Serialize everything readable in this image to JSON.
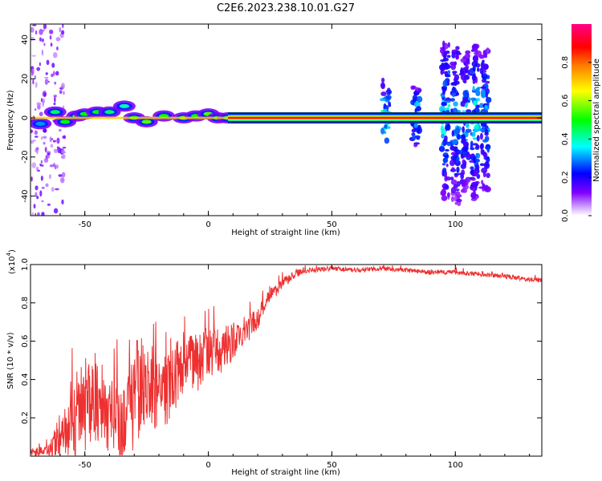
{
  "title": "C2E6.2023.238.10.01.G27",
  "chart_data": [
    {
      "type": "heatmap",
      "xlabel": "Height of straight line (km)",
      "ylabel": "Frequency (Hz)",
      "xlim": [
        -72,
        135
      ],
      "ylim": [
        -50,
        48
      ],
      "xticks": [
        -50,
        0,
        50,
        100
      ],
      "yticks": [
        -40,
        -20,
        0,
        20,
        40
      ],
      "colorbar": {
        "label": "Normalized spectral amplitude",
        "range": [
          0,
          1
        ],
        "ticks": [
          0.0,
          0.2,
          0.4,
          0.6,
          0.8
        ],
        "tick_labels": [
          "0.0",
          "0.2",
          "0.4",
          "0.6",
          "0.8"
        ],
        "colors": [
          "#ffffff",
          "#8000ff",
          "#0000ff",
          "#00ffff",
          "#00ff00",
          "#ffff00",
          "#ff8000",
          "#ff0000",
          "#ff00aa"
        ]
      },
      "carrier_band": {
        "x_start": -72,
        "x_end": 135,
        "frequency": 0,
        "amplitude": 0.9
      },
      "spikes": [
        {
          "x": 72,
          "fmin": -12,
          "fmax": 20,
          "amplitude": 0.45
        },
        {
          "x": 84,
          "fmin": -16,
          "fmax": 16,
          "amplitude": 0.45
        },
        {
          "x": 96,
          "fmin": -42,
          "fmax": 38,
          "amplitude": 0.4
        },
        {
          "x": 100,
          "fmin": -44,
          "fmax": 36,
          "amplitude": 0.35
        },
        {
          "x": 104,
          "fmin": -40,
          "fmax": 34,
          "amplitude": 0.35
        },
        {
          "x": 108,
          "fmin": -42,
          "fmax": 38,
          "amplitude": 0.4
        },
        {
          "x": 112,
          "fmin": -40,
          "fmax": 36,
          "amplitude": 0.35
        }
      ],
      "blobs": [
        {
          "x": -68,
          "f": -3,
          "amplitude": 0.3
        },
        {
          "x": -62,
          "f": 3,
          "amplitude": 0.45
        },
        {
          "x": -58,
          "f": -2,
          "amplitude": 0.5
        },
        {
          "x": -53,
          "f": 1,
          "amplitude": 0.55
        },
        {
          "x": -50,
          "f": 2,
          "amplitude": 0.5
        },
        {
          "x": -45,
          "f": 3,
          "amplitude": 0.5
        },
        {
          "x": -40,
          "f": 3,
          "amplitude": 0.45
        },
        {
          "x": -34,
          "f": 6,
          "amplitude": 0.4
        },
        {
          "x": -30,
          "f": 0,
          "amplitude": 0.5
        },
        {
          "x": -25,
          "f": -2,
          "amplitude": 0.55
        },
        {
          "x": -18,
          "f": 1,
          "amplitude": 0.5
        },
        {
          "x": -10,
          "f": 0,
          "amplitude": 0.55
        },
        {
          "x": -5,
          "f": 1,
          "amplitude": 0.5
        },
        {
          "x": 0,
          "f": 2,
          "amplitude": 0.55
        },
        {
          "x": 4,
          "f": 0,
          "amplitude": 0.5
        },
        {
          "x": 8,
          "f": 0,
          "amplitude": 0.45
        }
      ]
    },
    {
      "type": "line",
      "xlabel": "Height of straight line (km)",
      "ylabel": "SNR (10 * v/v)",
      "y_scale_label": "(x10",
      "y_scale_exponent": "4",
      "y_scale_suffix": ")",
      "xlim": [
        -72,
        135
      ],
      "ylim": [
        0.0,
        1.0
      ],
      "xticks": [
        -50,
        0,
        50,
        100
      ],
      "yticks": [
        0.2,
        0.4,
        0.6,
        0.8,
        1.0
      ],
      "color": "#ee3030",
      "series": [
        {
          "x": [
            -72,
            -65,
            -60,
            -55,
            -50,
            -45,
            -40,
            -35,
            -30,
            -25,
            -20,
            -15,
            -10,
            -5,
            0,
            5,
            10,
            15,
            20,
            25,
            30,
            35,
            40,
            50,
            60,
            70,
            80,
            90,
            100,
            110,
            120,
            130,
            135
          ],
          "y": [
            0.02,
            0.03,
            0.08,
            0.15,
            0.24,
            0.3,
            0.22,
            0.18,
            0.32,
            0.4,
            0.3,
            0.38,
            0.5,
            0.48,
            0.55,
            0.55,
            0.6,
            0.65,
            0.72,
            0.84,
            0.9,
            0.95,
            0.97,
            0.98,
            0.97,
            0.98,
            0.97,
            0.96,
            0.96,
            0.95,
            0.94,
            0.92,
            0.92
          ],
          "noise": [
            0.02,
            0.03,
            0.12,
            0.18,
            0.22,
            0.22,
            0.2,
            0.25,
            0.28,
            0.25,
            0.2,
            0.18,
            0.16,
            0.16,
            0.14,
            0.12,
            0.1,
            0.08,
            0.06,
            0.04,
            0.03,
            0.02,
            0.015,
            0.012,
            0.012,
            0.012,
            0.012,
            0.012,
            0.012,
            0.012,
            0.012,
            0.012,
            0.012
          ]
        }
      ]
    }
  ]
}
